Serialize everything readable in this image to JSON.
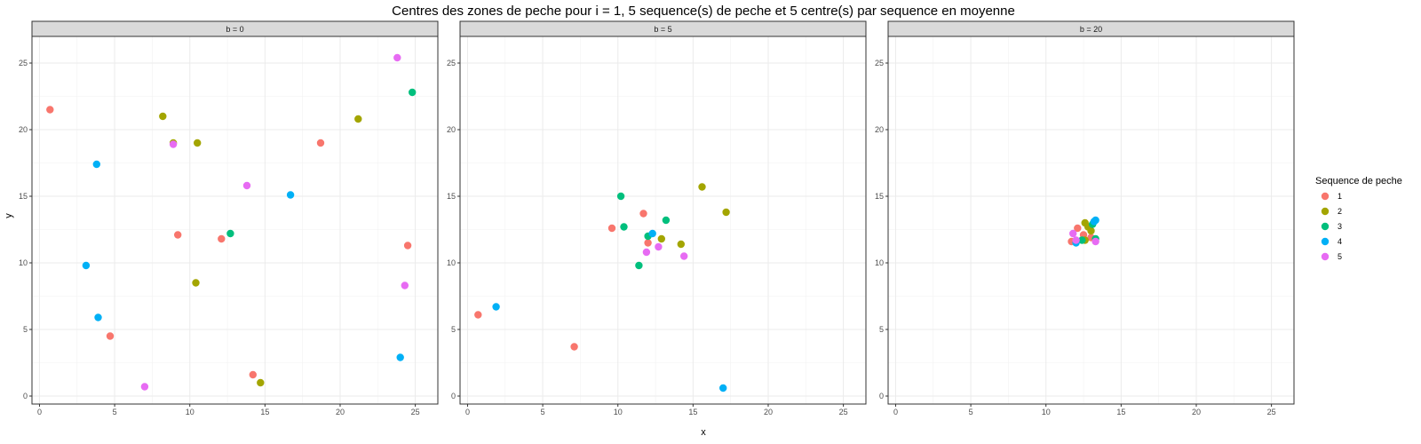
{
  "chart_data": {
    "type": "scatter",
    "title": "Centres des zones de peche pour i = 1, 5 sequence(s) de peche et 5 centre(s) par sequence en moyenne",
    "xlabel": "x",
    "ylabel": "y",
    "xlim": [
      -0.5,
      26.5
    ],
    "ylim": [
      -0.6,
      27
    ],
    "x_ticks": [
      0,
      5,
      10,
      15,
      20,
      25
    ],
    "y_ticks": [
      0,
      5,
      10,
      15,
      20,
      25
    ],
    "grid": true,
    "legend": {
      "title": "Sequence de peche",
      "placement": "right",
      "entries": [
        {
          "name": "1",
          "color": "#F8766D"
        },
        {
          "name": "2",
          "color": "#A3A500"
        },
        {
          "name": "3",
          "color": "#00BF7D"
        },
        {
          "name": "4",
          "color": "#00B0F6"
        },
        {
          "name": "5",
          "color": "#E76BF3"
        }
      ]
    },
    "panels": [
      {
        "label": "b = 0",
        "series": [
          {
            "name": "1",
            "points": [
              [
                0.7,
                21.5
              ],
              [
                4.7,
                4.5
              ],
              [
                9.2,
                12.1
              ],
              [
                12.1,
                11.8
              ],
              [
                14.2,
                1.6
              ],
              [
                18.7,
                19.0
              ],
              [
                24.5,
                11.3
              ]
            ]
          },
          {
            "name": "2",
            "points": [
              [
                8.2,
                21.0
              ],
              [
                8.9,
                19.0
              ],
              [
                10.5,
                19.0
              ],
              [
                10.4,
                8.5
              ],
              [
                14.7,
                1.0
              ],
              [
                21.2,
                20.8
              ]
            ]
          },
          {
            "name": "3",
            "points": [
              [
                12.7,
                12.2
              ],
              [
                24.8,
                22.8
              ]
            ]
          },
          {
            "name": "4",
            "points": [
              [
                3.1,
                9.8
              ],
              [
                3.8,
                17.4
              ],
              [
                3.9,
                5.9
              ],
              [
                16.7,
                15.1
              ],
              [
                24.0,
                2.9
              ]
            ]
          },
          {
            "name": "5",
            "points": [
              [
                7.0,
                0.7
              ],
              [
                8.9,
                18.9
              ],
              [
                13.8,
                15.8
              ],
              [
                23.8,
                25.4
              ],
              [
                24.3,
                8.3
              ]
            ]
          }
        ]
      },
      {
        "label": "b = 5",
        "series": [
          {
            "name": "1",
            "points": [
              [
                0.7,
                6.1
              ],
              [
                7.1,
                3.7
              ],
              [
                9.6,
                12.6
              ],
              [
                11.7,
                13.7
              ],
              [
                12.0,
                11.5
              ]
            ]
          },
          {
            "name": "2",
            "points": [
              [
                12.9,
                11.8
              ],
              [
                14.2,
                11.4
              ],
              [
                15.6,
                15.7
              ],
              [
                17.2,
                13.8
              ]
            ]
          },
          {
            "name": "3",
            "points": [
              [
                10.2,
                15.0
              ],
              [
                10.4,
                12.7
              ],
              [
                11.4,
                9.8
              ],
              [
                12.0,
                12.0
              ],
              [
                13.2,
                13.2
              ]
            ]
          },
          {
            "name": "4",
            "points": [
              [
                1.9,
                6.7
              ],
              [
                12.3,
                12.2
              ],
              [
                17.0,
                0.6
              ]
            ]
          },
          {
            "name": "5",
            "points": [
              [
                11.9,
                10.8
              ],
              [
                12.7,
                11.2
              ],
              [
                14.4,
                10.5
              ]
            ]
          }
        ]
      },
      {
        "label": "b = 20",
        "series": [
          {
            "name": "1",
            "points": [
              [
                11.7,
                11.6
              ],
              [
                12.1,
                12.6
              ],
              [
                12.5,
                12.1
              ],
              [
                13.0,
                11.9
              ]
            ]
          },
          {
            "name": "2",
            "points": [
              [
                12.6,
                13.0
              ],
              [
                12.8,
                12.7
              ],
              [
                13.0,
                12.4
              ],
              [
                12.6,
                11.7
              ]
            ]
          },
          {
            "name": "3",
            "points": [
              [
                12.4,
                11.7
              ],
              [
                13.1,
                12.9
              ],
              [
                13.3,
                11.8
              ]
            ]
          },
          {
            "name": "4",
            "points": [
              [
                12.0,
                11.5
              ],
              [
                13.2,
                13.1
              ],
              [
                13.3,
                13.2
              ]
            ]
          },
          {
            "name": "5",
            "points": [
              [
                11.8,
                12.2
              ],
              [
                12.0,
                11.7
              ],
              [
                13.3,
                11.6
              ]
            ]
          }
        ]
      }
    ]
  }
}
